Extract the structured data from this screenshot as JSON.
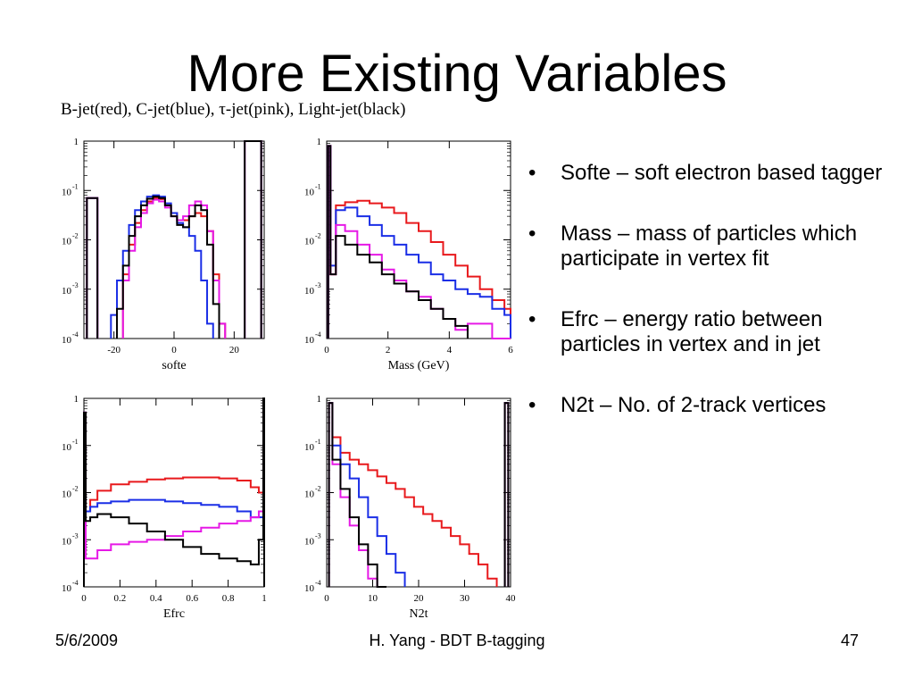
{
  "slide": {
    "title": "More Existing Variables",
    "legend_text": "B-jet(red), C-jet(blue), τ-jet(pink), Light-jet(black)",
    "bullets": [
      "Softe – soft electron based tagger",
      "Mass – mass of particles which participate in vertex fit",
      "Efrc – energy ratio between particles in vertex and in jet",
      "N2t – No. of 2-track vertices"
    ],
    "footer": {
      "date": "5/6/2009",
      "author": "H. Yang - BDT B-tagging",
      "page": "47"
    }
  },
  "colors": {
    "B-jet": "#e8191c",
    "C-jet": "#1a2ee6",
    "tau-jet": "#e619e6",
    "Light-jet": "#000000"
  },
  "chart_data": [
    {
      "type": "line",
      "xlabel": "softe",
      "ylabel": "",
      "xlim": [
        -30,
        30
      ],
      "ylim": [
        0.0001,
        1
      ],
      "yscale": "log",
      "x_ticks": [
        "-20",
        "0",
        "20"
      ],
      "y_ticks": [
        "10-4",
        "10-3",
        "10-2",
        "10-1",
        "1"
      ],
      "x": [
        -29,
        -22,
        -20,
        -18,
        -16,
        -14,
        -12,
        -10,
        -8,
        -6,
        -4,
        -2,
        0,
        2,
        4,
        6,
        8,
        10,
        12,
        14,
        16,
        18,
        29
      ],
      "series": [
        {
          "name": "B-jet",
          "values": [
            0.07,
            null,
            null,
            null,
            0.002,
            0.008,
            0.022,
            0.04,
            0.06,
            0.07,
            0.067,
            0.05,
            0.035,
            0.025,
            0.025,
            0.03,
            0.035,
            0.03,
            0.015,
            0.002,
            0.0002,
            null,
            1.0
          ]
        },
        {
          "name": "C-jet",
          "values": [
            0.07,
            null,
            0.0003,
            0.0015,
            0.006,
            0.02,
            0.04,
            0.06,
            0.075,
            0.08,
            0.075,
            0.055,
            0.035,
            0.022,
            0.018,
            0.012,
            0.006,
            0.0015,
            0.0002,
            null,
            null,
            null,
            1.0
          ]
        },
        {
          "name": "tau-jet",
          "values": [
            0.07,
            null,
            null,
            null,
            0.0015,
            0.006,
            0.018,
            0.035,
            0.055,
            0.065,
            0.06,
            0.045,
            0.03,
            0.025,
            0.03,
            0.05,
            0.06,
            0.05,
            0.015,
            0.0015,
            0.0002,
            null,
            1.0
          ]
        },
        {
          "name": "Light-jet",
          "values": [
            0.07,
            null,
            null,
            0.0004,
            0.003,
            0.012,
            0.03,
            0.05,
            0.068,
            0.075,
            0.07,
            0.05,
            0.03,
            0.02,
            0.018,
            0.03,
            0.05,
            0.04,
            0.008,
            0.0005,
            null,
            null,
            1.0
          ]
        }
      ]
    },
    {
      "type": "line",
      "xlabel": "Mass (GeV)",
      "ylabel": "",
      "xlim": [
        0,
        6
      ],
      "ylim": [
        0.0001,
        1
      ],
      "yscale": "log",
      "x_ticks": [
        "0",
        "2",
        "4",
        "6"
      ],
      "y_ticks": [
        "10-4",
        "10-3",
        "10-2",
        "10-1",
        "1"
      ],
      "x": [
        0.05,
        0.2,
        0.4,
        0.8,
        1.2,
        1.6,
        2.0,
        2.4,
        2.8,
        3.2,
        3.6,
        4.0,
        4.4,
        4.8,
        5.2,
        5.6,
        6.0
      ],
      "series": [
        {
          "name": "B-jet",
          "values": [
            0.8,
            0.002,
            0.05,
            0.058,
            0.062,
            0.055,
            0.045,
            0.035,
            0.022,
            0.015,
            0.009,
            0.005,
            0.003,
            0.0018,
            0.001,
            0.0006,
            0.0004
          ]
        },
        {
          "name": "C-jet",
          "values": [
            0.8,
            0.003,
            0.04,
            0.045,
            0.03,
            0.02,
            0.012,
            0.008,
            0.005,
            0.0035,
            0.002,
            0.0015,
            0.001,
            0.0008,
            0.0007,
            0.0004,
            0.0003
          ]
        },
        {
          "name": "tau-jet",
          "values": [
            0.8,
            0.002,
            0.02,
            0.015,
            0.008,
            0.005,
            0.0025,
            0.0015,
            0.0009,
            0.0007,
            0.0004,
            0.00025,
            0.00015,
            0.0002,
            0.0002,
            0.0001,
            0.0001
          ]
        },
        {
          "name": "Light-jet",
          "values": [
            0.8,
            0.002,
            0.012,
            0.008,
            0.005,
            0.0035,
            0.002,
            0.0013,
            0.0009,
            0.0006,
            0.0004,
            0.00025,
            0.00018,
            null,
            null,
            null,
            null
          ]
        }
      ]
    },
    {
      "type": "line",
      "xlabel": "Efrc",
      "ylabel": "",
      "xlim": [
        0,
        1
      ],
      "ylim": [
        0.0001,
        1
      ],
      "yscale": "log",
      "x_ticks": [
        "0",
        "0.2",
        "0.4",
        "0.6",
        "0.8",
        "1"
      ],
      "y_ticks": [
        "10-4",
        "10-3",
        "10-2",
        "10-1",
        "1"
      ],
      "x": [
        0.0,
        0.02,
        0.05,
        0.1,
        0.2,
        0.3,
        0.4,
        0.5,
        0.6,
        0.7,
        0.8,
        0.9,
        0.95,
        0.99,
        1.0
      ],
      "series": [
        {
          "name": "B-jet",
          "values": [
            0.5,
            0.004,
            0.007,
            0.011,
            0.015,
            0.017,
            0.019,
            0.02,
            0.021,
            0.021,
            0.02,
            0.018,
            0.013,
            0.01,
            1.0
          ]
        },
        {
          "name": "C-jet",
          "values": [
            0.5,
            0.004,
            0.005,
            0.006,
            0.0065,
            0.007,
            0.007,
            0.0065,
            0.006,
            0.0055,
            0.005,
            0.004,
            0.003,
            0.003,
            1.0
          ]
        },
        {
          "name": "tau-jet",
          "values": [
            0.5,
            0.0004,
            0.0004,
            0.0006,
            0.0008,
            0.0009,
            0.001,
            0.0012,
            0.0015,
            0.0018,
            0.0022,
            0.0025,
            0.003,
            0.004,
            1.0
          ]
        },
        {
          "name": "Light-jet",
          "values": [
            0.5,
            0.0025,
            0.003,
            0.0035,
            0.003,
            0.0022,
            0.0015,
            0.001,
            0.0007,
            0.0005,
            0.0004,
            0.00035,
            0.0003,
            0.001,
            1.0
          ]
        }
      ]
    },
    {
      "type": "line",
      "xlabel": "N2t",
      "ylabel": "",
      "xlim": [
        0,
        40
      ],
      "ylim": [
        0.0001,
        1
      ],
      "yscale": "log",
      "x_ticks": [
        "0",
        "10",
        "20",
        "30",
        "40"
      ],
      "y_ticks": [
        "10-4",
        "10-3",
        "10-2",
        "10-1",
        "1"
      ],
      "x": [
        0.5,
        2,
        4,
        6,
        8,
        10,
        12,
        14,
        16,
        18,
        20,
        22,
        24,
        26,
        28,
        30,
        32,
        34,
        36,
        38,
        39.5
      ],
      "series": [
        {
          "name": "B-jet",
          "values": [
            0.8,
            0.15,
            0.07,
            0.05,
            0.04,
            0.03,
            0.022,
            0.016,
            0.012,
            0.008,
            0.005,
            0.0035,
            0.0025,
            0.0018,
            0.0012,
            0.0008,
            0.0005,
            0.0003,
            0.00015,
            null,
            0.8
          ]
        },
        {
          "name": "C-jet",
          "values": [
            0.8,
            0.1,
            0.04,
            0.02,
            0.008,
            0.003,
            0.0012,
            0.0005,
            0.0002,
            null,
            null,
            null,
            null,
            null,
            null,
            null,
            null,
            null,
            null,
            null,
            0.8
          ]
        },
        {
          "name": "tau-jet",
          "values": [
            0.8,
            0.04,
            0.008,
            0.002,
            0.0006,
            0.00015,
            null,
            null,
            null,
            null,
            null,
            null,
            null,
            null,
            null,
            null,
            null,
            null,
            null,
            null,
            0.8
          ]
        },
        {
          "name": "Light-jet",
          "values": [
            0.8,
            0.05,
            0.012,
            0.003,
            0.0008,
            0.0003,
            0.0001,
            null,
            null,
            null,
            null,
            null,
            null,
            null,
            null,
            null,
            null,
            null,
            null,
            null,
            0.8
          ]
        }
      ]
    }
  ]
}
